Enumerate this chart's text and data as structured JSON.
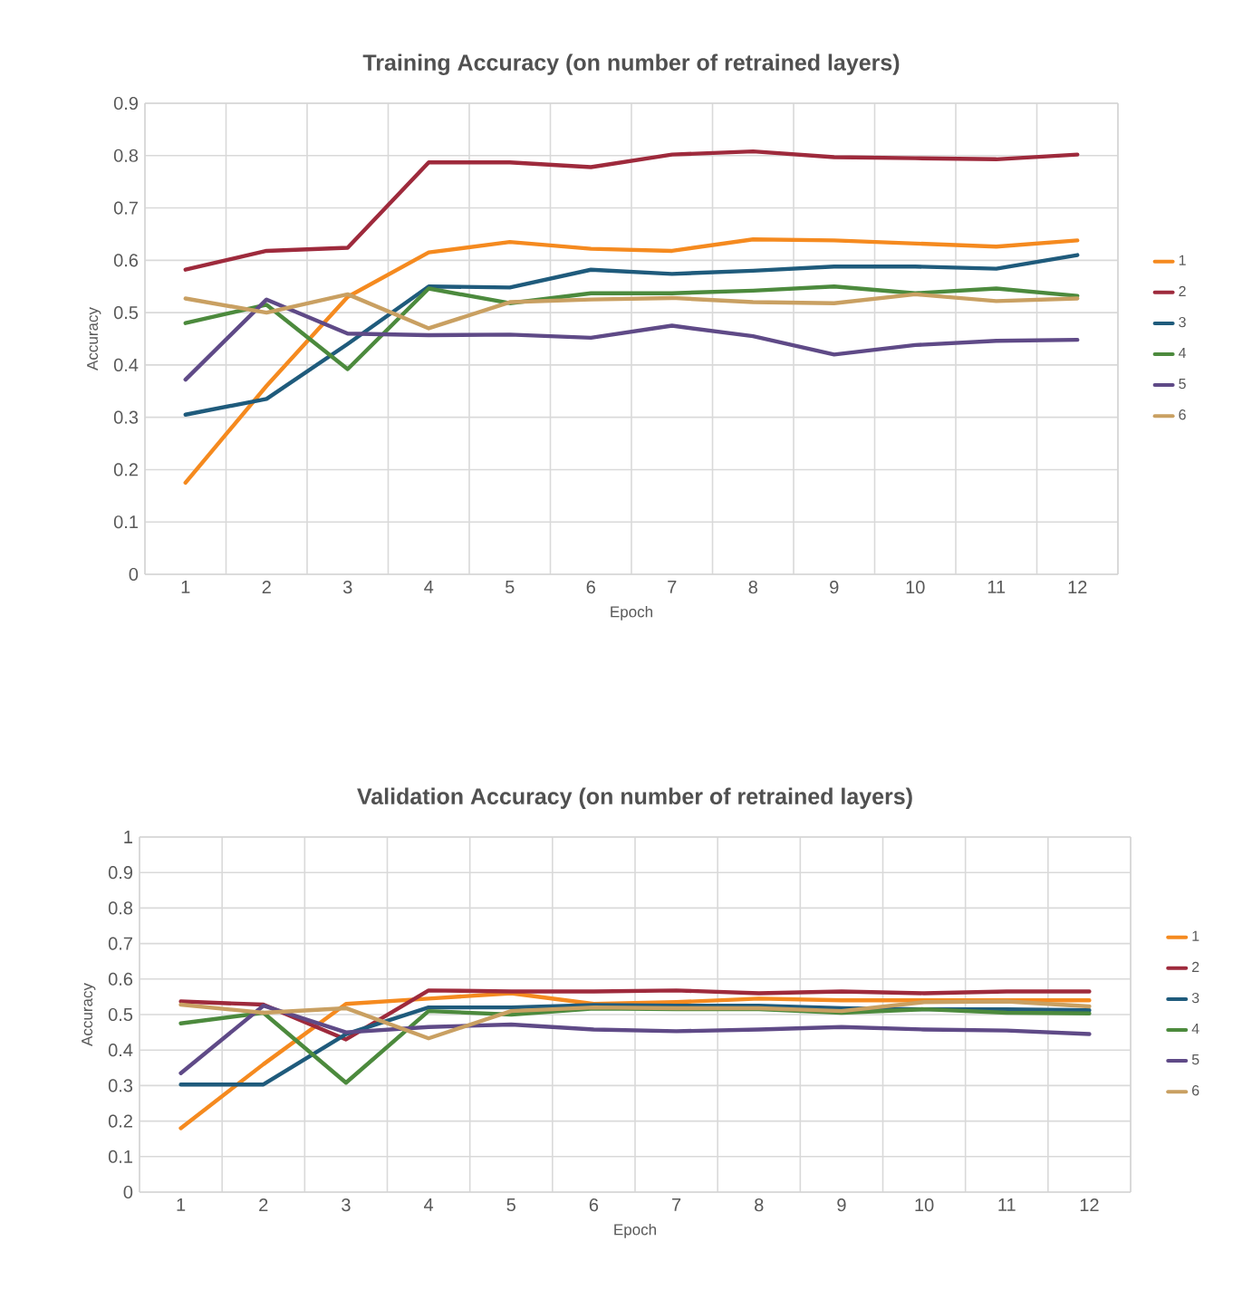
{
  "chart_data": [
    {
      "type": "line",
      "title": "Training Accuracy (on number of retrained layers)",
      "xlabel": "Epoch",
      "ylabel": "Accuracy",
      "categories": [
        "1",
        "2",
        "3",
        "4",
        "5",
        "6",
        "7",
        "8",
        "9",
        "10",
        "11",
        "12"
      ],
      "ylim": [
        0,
        0.9
      ],
      "yticks": [
        0,
        0.1,
        0.2,
        0.3,
        0.4,
        0.5,
        0.6,
        0.7,
        0.8,
        0.9
      ],
      "grid": true,
      "legend": "right",
      "marker": "none",
      "line_style": "solid",
      "series": [
        {
          "name": "1",
          "color": "#f58a1f",
          "values": [
            0.175,
            0.36,
            0.53,
            0.615,
            0.635,
            0.622,
            0.618,
            0.64,
            0.638,
            0.632,
            0.626,
            0.638
          ]
        },
        {
          "name": "2",
          "color": "#9e2a3c",
          "values": [
            0.582,
            0.618,
            0.624,
            0.787,
            0.787,
            0.778,
            0.802,
            0.808,
            0.797,
            0.795,
            0.793,
            0.802
          ]
        },
        {
          "name": "3",
          "color": "#1f5b7c",
          "values": [
            0.305,
            0.335,
            0.44,
            0.55,
            0.548,
            0.582,
            0.574,
            0.58,
            0.588,
            0.588,
            0.584,
            0.61
          ]
        },
        {
          "name": "4",
          "color": "#4c8a3d",
          "values": [
            0.48,
            0.515,
            0.392,
            0.546,
            0.518,
            0.537,
            0.537,
            0.542,
            0.55,
            0.537,
            0.546,
            0.532
          ]
        },
        {
          "name": "5",
          "color": "#5f4a87",
          "values": [
            0.372,
            0.525,
            0.46,
            0.457,
            0.458,
            0.452,
            0.475,
            0.455,
            0.42,
            0.438,
            0.446,
            0.448
          ]
        },
        {
          "name": "6",
          "color": "#c9a062",
          "values": [
            0.527,
            0.5,
            0.535,
            0.47,
            0.52,
            0.525,
            0.528,
            0.52,
            0.518,
            0.535,
            0.522,
            0.527
          ]
        }
      ]
    },
    {
      "type": "line",
      "title": "Validation  Accuracy (on number of retrained layers)",
      "xlabel": "Epoch",
      "ylabel": "Accuracy",
      "categories": [
        "1",
        "2",
        "3",
        "4",
        "5",
        "6",
        "7",
        "8",
        "9",
        "10",
        "11",
        "12"
      ],
      "ylim": [
        0,
        1
      ],
      "yticks": [
        0,
        0.1,
        0.2,
        0.3,
        0.4,
        0.5,
        0.6,
        0.7,
        0.8,
        0.9,
        1
      ],
      "grid": true,
      "legend": "right",
      "marker": "none",
      "line_style": "solid",
      "series": [
        {
          "name": "1",
          "color": "#f58a1f",
          "values": [
            0.18,
            0.36,
            0.53,
            0.545,
            0.56,
            0.53,
            0.535,
            0.545,
            0.54,
            0.54,
            0.54,
            0.54
          ]
        },
        {
          "name": "2",
          "color": "#9e2a3c",
          "values": [
            0.537,
            0.528,
            0.43,
            0.568,
            0.565,
            0.565,
            0.568,
            0.56,
            0.565,
            0.56,
            0.565,
            0.565
          ]
        },
        {
          "name": "3",
          "color": "#1f5b7c",
          "values": [
            0.303,
            0.303,
            0.445,
            0.52,
            0.52,
            0.527,
            0.525,
            0.525,
            0.518,
            0.515,
            0.515,
            0.512
          ]
        },
        {
          "name": "4",
          "color": "#4c8a3d",
          "values": [
            0.475,
            0.505,
            0.308,
            0.51,
            0.5,
            0.517,
            0.515,
            0.515,
            0.505,
            0.515,
            0.505,
            0.503
          ]
        },
        {
          "name": "5",
          "color": "#5f4a87",
          "values": [
            0.335,
            0.525,
            0.45,
            0.465,
            0.472,
            0.458,
            0.453,
            0.458,
            0.465,
            0.458,
            0.455,
            0.445
          ]
        },
        {
          "name": "6",
          "color": "#c9a062",
          "values": [
            0.528,
            0.505,
            0.518,
            0.433,
            0.51,
            0.52,
            0.518,
            0.518,
            0.51,
            0.535,
            0.537,
            0.523
          ]
        }
      ]
    }
  ]
}
